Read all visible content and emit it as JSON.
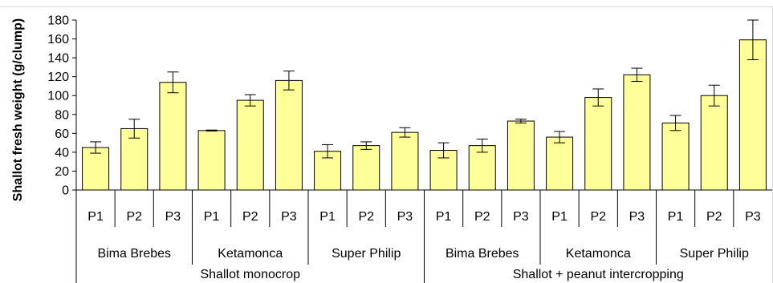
{
  "chart_data": {
    "type": "bar",
    "ylabel": "Shallot fresh weight (g/clump)",
    "ylim": [
      0,
      180
    ],
    "yticks": [
      0,
      20,
      40,
      60,
      80,
      100,
      120,
      140,
      160,
      180
    ],
    "bar_color": "#FFFF99",
    "groups": [
      {
        "label": "Shallot monocrop",
        "varieties": [
          {
            "label": "Bima Brebes",
            "bars": [
              {
                "label": "P1",
                "value": 45,
                "err": 6
              },
              {
                "label": "P2",
                "value": 65,
                "err": 10
              },
              {
                "label": "P3",
                "value": 114,
                "err": 11
              }
            ]
          },
          {
            "label": "Ketamonca",
            "bars": [
              {
                "label": "P1",
                "value": 63,
                "err": 0.5
              },
              {
                "label": "P2",
                "value": 95,
                "err": 6
              },
              {
                "label": "P3",
                "value": 116,
                "err": 10
              }
            ]
          },
          {
            "label": "Super Philip",
            "bars": [
              {
                "label": "P1",
                "value": 41,
                "err": 7
              },
              {
                "label": "P2",
                "value": 47,
                "err": 4
              },
              {
                "label": "P3",
                "value": 61,
                "err": 5
              }
            ]
          }
        ]
      },
      {
        "label": "Shallot + peanut intercropping",
        "varieties": [
          {
            "label": "Bima Brebes",
            "bars": [
              {
                "label": "P1",
                "value": 42,
                "err": 8
              },
              {
                "label": "P2",
                "value": 47,
                "err": 7
              },
              {
                "label": "P3",
                "value": 73,
                "err": 2
              }
            ]
          },
          {
            "label": "Ketamonca",
            "bars": [
              {
                "label": "P1",
                "value": 56,
                "err": 6
              },
              {
                "label": "P2",
                "value": 98,
                "err": 9
              },
              {
                "label": "P3",
                "value": 122,
                "err": 7
              }
            ]
          },
          {
            "label": "Super Philip",
            "bars": [
              {
                "label": "P1",
                "value": 71,
                "err": 8
              },
              {
                "label": "P2",
                "value": 100,
                "err": 11
              },
              {
                "label": "P3",
                "value": 159,
                "err": 21
              }
            ]
          }
        ]
      }
    ]
  }
}
